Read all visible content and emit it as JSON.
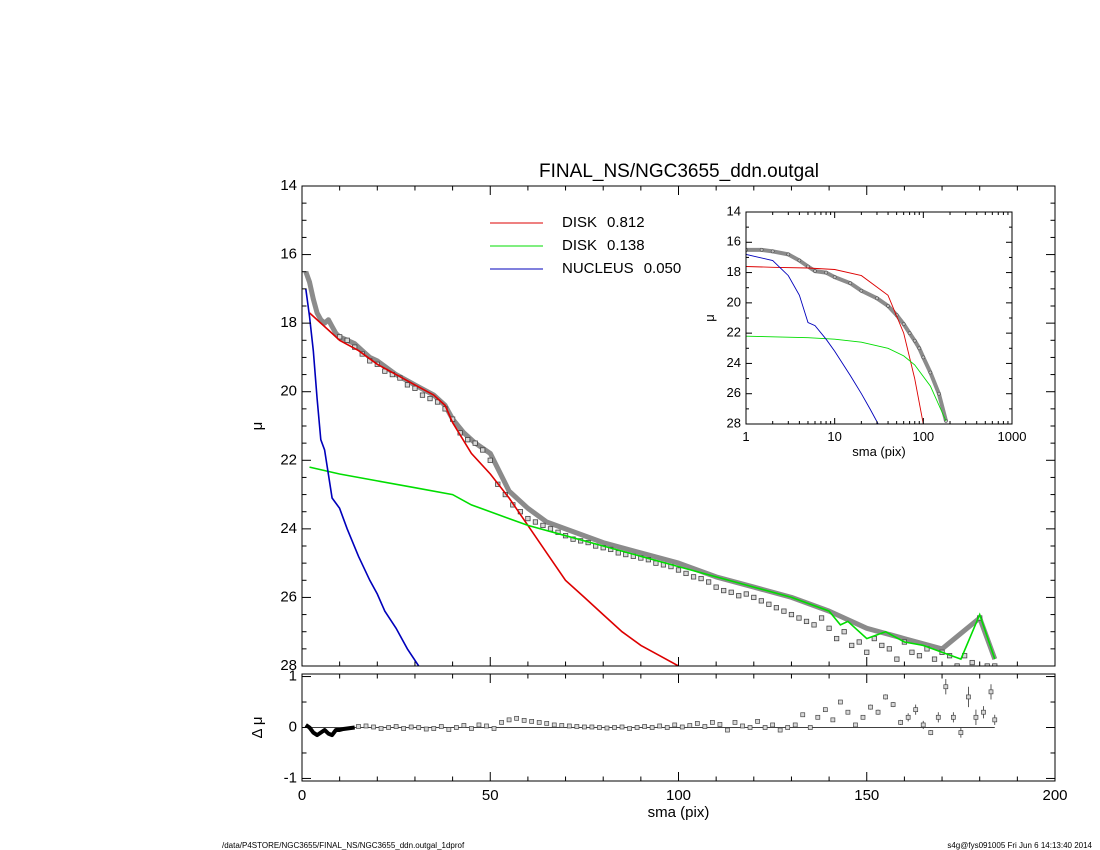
{
  "footer": {
    "left": "/data/P4STORE/NGC3655/FINAL_NS/NGC3655_ddn.outgal_1dprof",
    "right": "s4g@fys091005  Fri Jun  6 14:13:40 2014"
  },
  "chart_data": [
    {
      "id": "main",
      "type": "line",
      "title": "FINAL_NS/NGC3655_ddn.outgal",
      "xlabel": "",
      "ylabel": "μ",
      "xlim": [
        0,
        200
      ],
      "ylim": [
        28,
        14
      ],
      "y_inverted": true,
      "xticks": [
        0,
        50,
        100,
        150,
        200
      ],
      "yticks": [
        14,
        16,
        18,
        20,
        22,
        24,
        26,
        28
      ],
      "legend_position": "top-center",
      "legend": [
        {
          "line": "DISK",
          "value": "0.812",
          "color": "#dd0000"
        },
        {
          "line": "DISK",
          "value": "0.138",
          "color": "#00dd00"
        },
        {
          "line": "NUCLEUS",
          "value": "0.050",
          "color": "#0000bb"
        }
      ],
      "series": [
        {
          "name": "DISK 0.812",
          "color": "#dd0000",
          "x": [
            2,
            5,
            8,
            10,
            15,
            20,
            25,
            30,
            35,
            38,
            40,
            45,
            50,
            55,
            60,
            65,
            70,
            75,
            80,
            85,
            90,
            95,
            100
          ],
          "y": [
            17.7,
            18.0,
            18.3,
            18.5,
            18.8,
            19.2,
            19.5,
            19.8,
            20.1,
            20.4,
            20.9,
            21.8,
            22.4,
            23.1,
            23.9,
            24.7,
            25.5,
            26.0,
            26.5,
            27.0,
            27.4,
            27.7,
            28.0
          ]
        },
        {
          "name": "DISK 0.138",
          "color": "#00dd00",
          "x": [
            2,
            10,
            20,
            30,
            40,
            45,
            50,
            55,
            60,
            70,
            80,
            90,
            100,
            110,
            120,
            130,
            140,
            143,
            145,
            150,
            155,
            160,
            165,
            170,
            175,
            180,
            184
          ],
          "y": [
            22.2,
            22.4,
            22.6,
            22.8,
            23.0,
            23.3,
            23.5,
            23.7,
            23.9,
            24.2,
            24.5,
            24.8,
            25.1,
            25.4,
            25.7,
            26.0,
            26.4,
            26.8,
            26.7,
            27.2,
            27.0,
            27.3,
            27.4,
            27.6,
            27.8,
            26.5,
            27.8
          ]
        },
        {
          "name": "NUCLEUS 0.050",
          "color": "#0000bb",
          "x": [
            1,
            2,
            3,
            4,
            5,
            6,
            8,
            10,
            12,
            15,
            18,
            20,
            22,
            25,
            28,
            31
          ],
          "y": [
            17.0,
            17.8,
            18.8,
            20.2,
            21.4,
            21.7,
            23.1,
            23.4,
            24.0,
            24.8,
            25.5,
            25.9,
            26.4,
            26.9,
            27.5,
            28.0
          ]
        }
      ],
      "model_total": {
        "color": "#777777",
        "x": [
          1,
          2,
          3,
          4,
          5,
          6,
          7,
          8,
          9,
          10,
          12,
          14,
          16,
          18,
          20,
          25,
          30,
          35,
          38,
          40,
          43,
          46,
          50,
          55,
          60,
          65,
          70,
          80,
          90,
          100,
          110,
          120,
          130,
          140,
          150,
          160,
          170,
          180,
          184
        ],
        "y": [
          16.5,
          16.8,
          17.3,
          17.7,
          17.9,
          18.0,
          17.9,
          18.1,
          18.3,
          18.4,
          18.5,
          18.6,
          18.8,
          19.0,
          19.1,
          19.5,
          19.8,
          20.1,
          20.4,
          20.8,
          21.2,
          21.5,
          21.8,
          22.9,
          23.4,
          23.8,
          24.0,
          24.4,
          24.7,
          25.0,
          25.4,
          25.7,
          26.0,
          26.4,
          26.9,
          27.2,
          27.5,
          26.6,
          27.8
        ]
      },
      "data_points": {
        "x": [
          10,
          12,
          14,
          16,
          18,
          20,
          22,
          24,
          26,
          28,
          30,
          32,
          34,
          36,
          38,
          40,
          42,
          44,
          46,
          48,
          50,
          52,
          54,
          56,
          58,
          60,
          62,
          64,
          66,
          68,
          70,
          72,
          74,
          76,
          78,
          80,
          82,
          84,
          86,
          88,
          90,
          92,
          94,
          96,
          98,
          100,
          102,
          104,
          106,
          108,
          110,
          112,
          114,
          116,
          118,
          120,
          122,
          124,
          126,
          128,
          130,
          132,
          134,
          136,
          138,
          140,
          142,
          144,
          146,
          148,
          150,
          152,
          154,
          156,
          158,
          160,
          162,
          164,
          166,
          168,
          170,
          172,
          174,
          176,
          178,
          180,
          182,
          184
        ],
        "y": [
          18.4,
          18.5,
          18.7,
          18.9,
          19.1,
          19.2,
          19.4,
          19.5,
          19.6,
          19.8,
          19.9,
          20.1,
          20.2,
          20.3,
          20.5,
          20.8,
          21.2,
          21.4,
          21.5,
          21.7,
          22.0,
          22.7,
          23.0,
          23.3,
          23.5,
          23.7,
          23.8,
          23.9,
          24.0,
          24.1,
          24.2,
          24.3,
          24.35,
          24.4,
          24.5,
          24.55,
          24.6,
          24.7,
          24.75,
          24.8,
          24.85,
          24.9,
          25.0,
          25.05,
          25.1,
          25.2,
          25.3,
          25.4,
          25.45,
          25.55,
          25.7,
          25.8,
          25.85,
          25.95,
          25.9,
          26.0,
          26.1,
          26.2,
          26.3,
          26.4,
          26.5,
          26.6,
          26.7,
          26.8,
          26.6,
          26.9,
          27.2,
          27.0,
          27.4,
          27.3,
          27.6,
          27.2,
          27.4,
          27.5,
          27.8,
          27.3,
          27.6,
          27.7,
          27.5,
          27.8,
          27.6,
          27.7,
          28.0,
          27.7,
          27.9,
          26.6,
          28.0,
          28.0
        ]
      }
    },
    {
      "id": "residual",
      "type": "scatter",
      "title": "",
      "xlabel": "sma (pix)",
      "ylabel": "Δ μ",
      "xlim": [
        0,
        200
      ],
      "ylim": [
        -1.05,
        1.05
      ],
      "xticks": [
        0,
        50,
        100,
        150,
        200
      ],
      "yticks": [
        -1,
        0,
        1
      ],
      "series": [
        {
          "name": "",
          "color": "#000000",
          "x": [
            1,
            2,
            3,
            4,
            5,
            6,
            7,
            8,
            9,
            10,
            11,
            12,
            13,
            14
          ],
          "y": [
            0.05,
            0.0,
            -0.1,
            -0.15,
            -0.1,
            -0.05,
            -0.12,
            -0.15,
            -0.05,
            -0.05,
            -0.03,
            -0.02,
            -0.01,
            0.0
          ]
        }
      ],
      "points": {
        "x": [
          15,
          17,
          19,
          21,
          23,
          25,
          27,
          29,
          31,
          33,
          35,
          37,
          39,
          41,
          43,
          45,
          47,
          49,
          51,
          53,
          55,
          57,
          59,
          61,
          63,
          65,
          67,
          69,
          71,
          73,
          75,
          77,
          79,
          81,
          83,
          85,
          87,
          89,
          91,
          93,
          95,
          97,
          99,
          101,
          103,
          105,
          107,
          109,
          111,
          113,
          115,
          117,
          119,
          121,
          123,
          125,
          127,
          129,
          131,
          133,
          135,
          137,
          139,
          141,
          143,
          145,
          147,
          149,
          151,
          153,
          155,
          157,
          159,
          161,
          163,
          165,
          167,
          169,
          171,
          173,
          175,
          177,
          179,
          181,
          183,
          184
        ],
        "y": [
          0.02,
          0.03,
          0.01,
          -0.02,
          0.0,
          0.02,
          -0.02,
          0.01,
          0.0,
          -0.03,
          -0.02,
          0.02,
          -0.04,
          0.0,
          0.04,
          -0.02,
          0.05,
          0.03,
          -0.02,
          0.1,
          0.15,
          0.18,
          0.14,
          0.12,
          0.1,
          0.08,
          0.05,
          0.04,
          0.03,
          0.02,
          0.01,
          0.01,
          0.0,
          -0.01,
          0.0,
          0.01,
          -0.02,
          0.0,
          0.02,
          0.0,
          0.03,
          0.0,
          0.05,
          0.01,
          0.04,
          0.08,
          0.02,
          0.1,
          0.06,
          -0.05,
          0.1,
          0.03,
          0.0,
          0.12,
          0.0,
          0.05,
          -0.05,
          0.0,
          0.05,
          0.25,
          0.0,
          0.2,
          0.35,
          0.15,
          0.5,
          0.3,
          0.05,
          0.2,
          0.4,
          0.3,
          0.6,
          0.45,
          0.1,
          0.2,
          0.35,
          0.05,
          -0.1,
          0.2,
          0.8,
          0.2,
          -0.1,
          0.6,
          0.2,
          0.3,
          0.7,
          0.15
        ],
        "err": [
          0,
          0,
          0,
          0,
          0,
          0,
          0,
          0,
          0,
          0,
          0,
          0,
          0,
          0,
          0,
          0,
          0,
          0,
          0,
          0,
          0,
          0,
          0,
          0,
          0,
          0,
          0,
          0,
          0,
          0,
          0,
          0,
          0,
          0,
          0,
          0,
          0,
          0,
          0,
          0,
          0,
          0,
          0,
          0,
          0,
          0,
          0,
          0,
          0,
          0,
          0,
          0,
          0,
          0,
          0,
          0,
          0,
          0,
          0,
          0,
          0,
          0,
          0,
          0,
          0,
          0,
          0,
          0,
          0.05,
          0.05,
          0.05,
          0.05,
          0.05,
          0.08,
          0.1,
          0.08,
          0.05,
          0.1,
          0.15,
          0.1,
          0.1,
          0.2,
          0.15,
          0.12,
          0.15,
          0.1
        ]
      }
    },
    {
      "id": "inset",
      "type": "line",
      "title": "",
      "xlabel": "sma (pix)",
      "ylabel": "μ",
      "xscale": "log",
      "xlim": [
        1,
        1000
      ],
      "ylim": [
        28,
        14
      ],
      "y_inverted": true,
      "xticks": [
        1,
        10,
        100,
        1000
      ],
      "yticks": [
        14,
        16,
        18,
        20,
        22,
        24,
        26,
        28
      ],
      "series": [
        {
          "name": "DISK 0.812",
          "color": "#dd0000",
          "x": [
            1,
            2,
            5,
            10,
            20,
            40,
            60,
            80,
            100
          ],
          "y": [
            17.6,
            17.65,
            17.7,
            17.8,
            18.2,
            19.5,
            22.0,
            25.0,
            28.0
          ]
        },
        {
          "name": "DISK 0.138",
          "color": "#00dd00",
          "x": [
            1,
            5,
            10,
            20,
            40,
            60,
            80,
            120,
            180
          ],
          "y": [
            22.2,
            22.3,
            22.4,
            22.6,
            23.0,
            23.5,
            24.1,
            25.5,
            27.8
          ]
        },
        {
          "name": "NUCLEUS 0.050",
          "color": "#0000bb",
          "x": [
            1,
            2,
            3,
            4,
            5,
            6,
            8,
            10,
            15,
            20,
            25,
            31
          ],
          "y": [
            16.8,
            17.2,
            18.2,
            19.5,
            21.3,
            21.5,
            22.4,
            23.2,
            24.8,
            26.0,
            27.0,
            28.0
          ]
        }
      ],
      "model_total": {
        "color": "#777777",
        "x": [
          1,
          1.5,
          2,
          3,
          4,
          5,
          6,
          8,
          10,
          15,
          20,
          30,
          40,
          50,
          60,
          70,
          80,
          90,
          100,
          120,
          150,
          180
        ],
        "y": [
          16.5,
          16.5,
          16.6,
          16.8,
          17.2,
          17.6,
          17.9,
          18.0,
          18.3,
          18.7,
          19.2,
          19.7,
          20.2,
          20.8,
          21.4,
          22.0,
          22.5,
          23.0,
          23.6,
          24.6,
          26.0,
          27.8
        ]
      }
    }
  ]
}
